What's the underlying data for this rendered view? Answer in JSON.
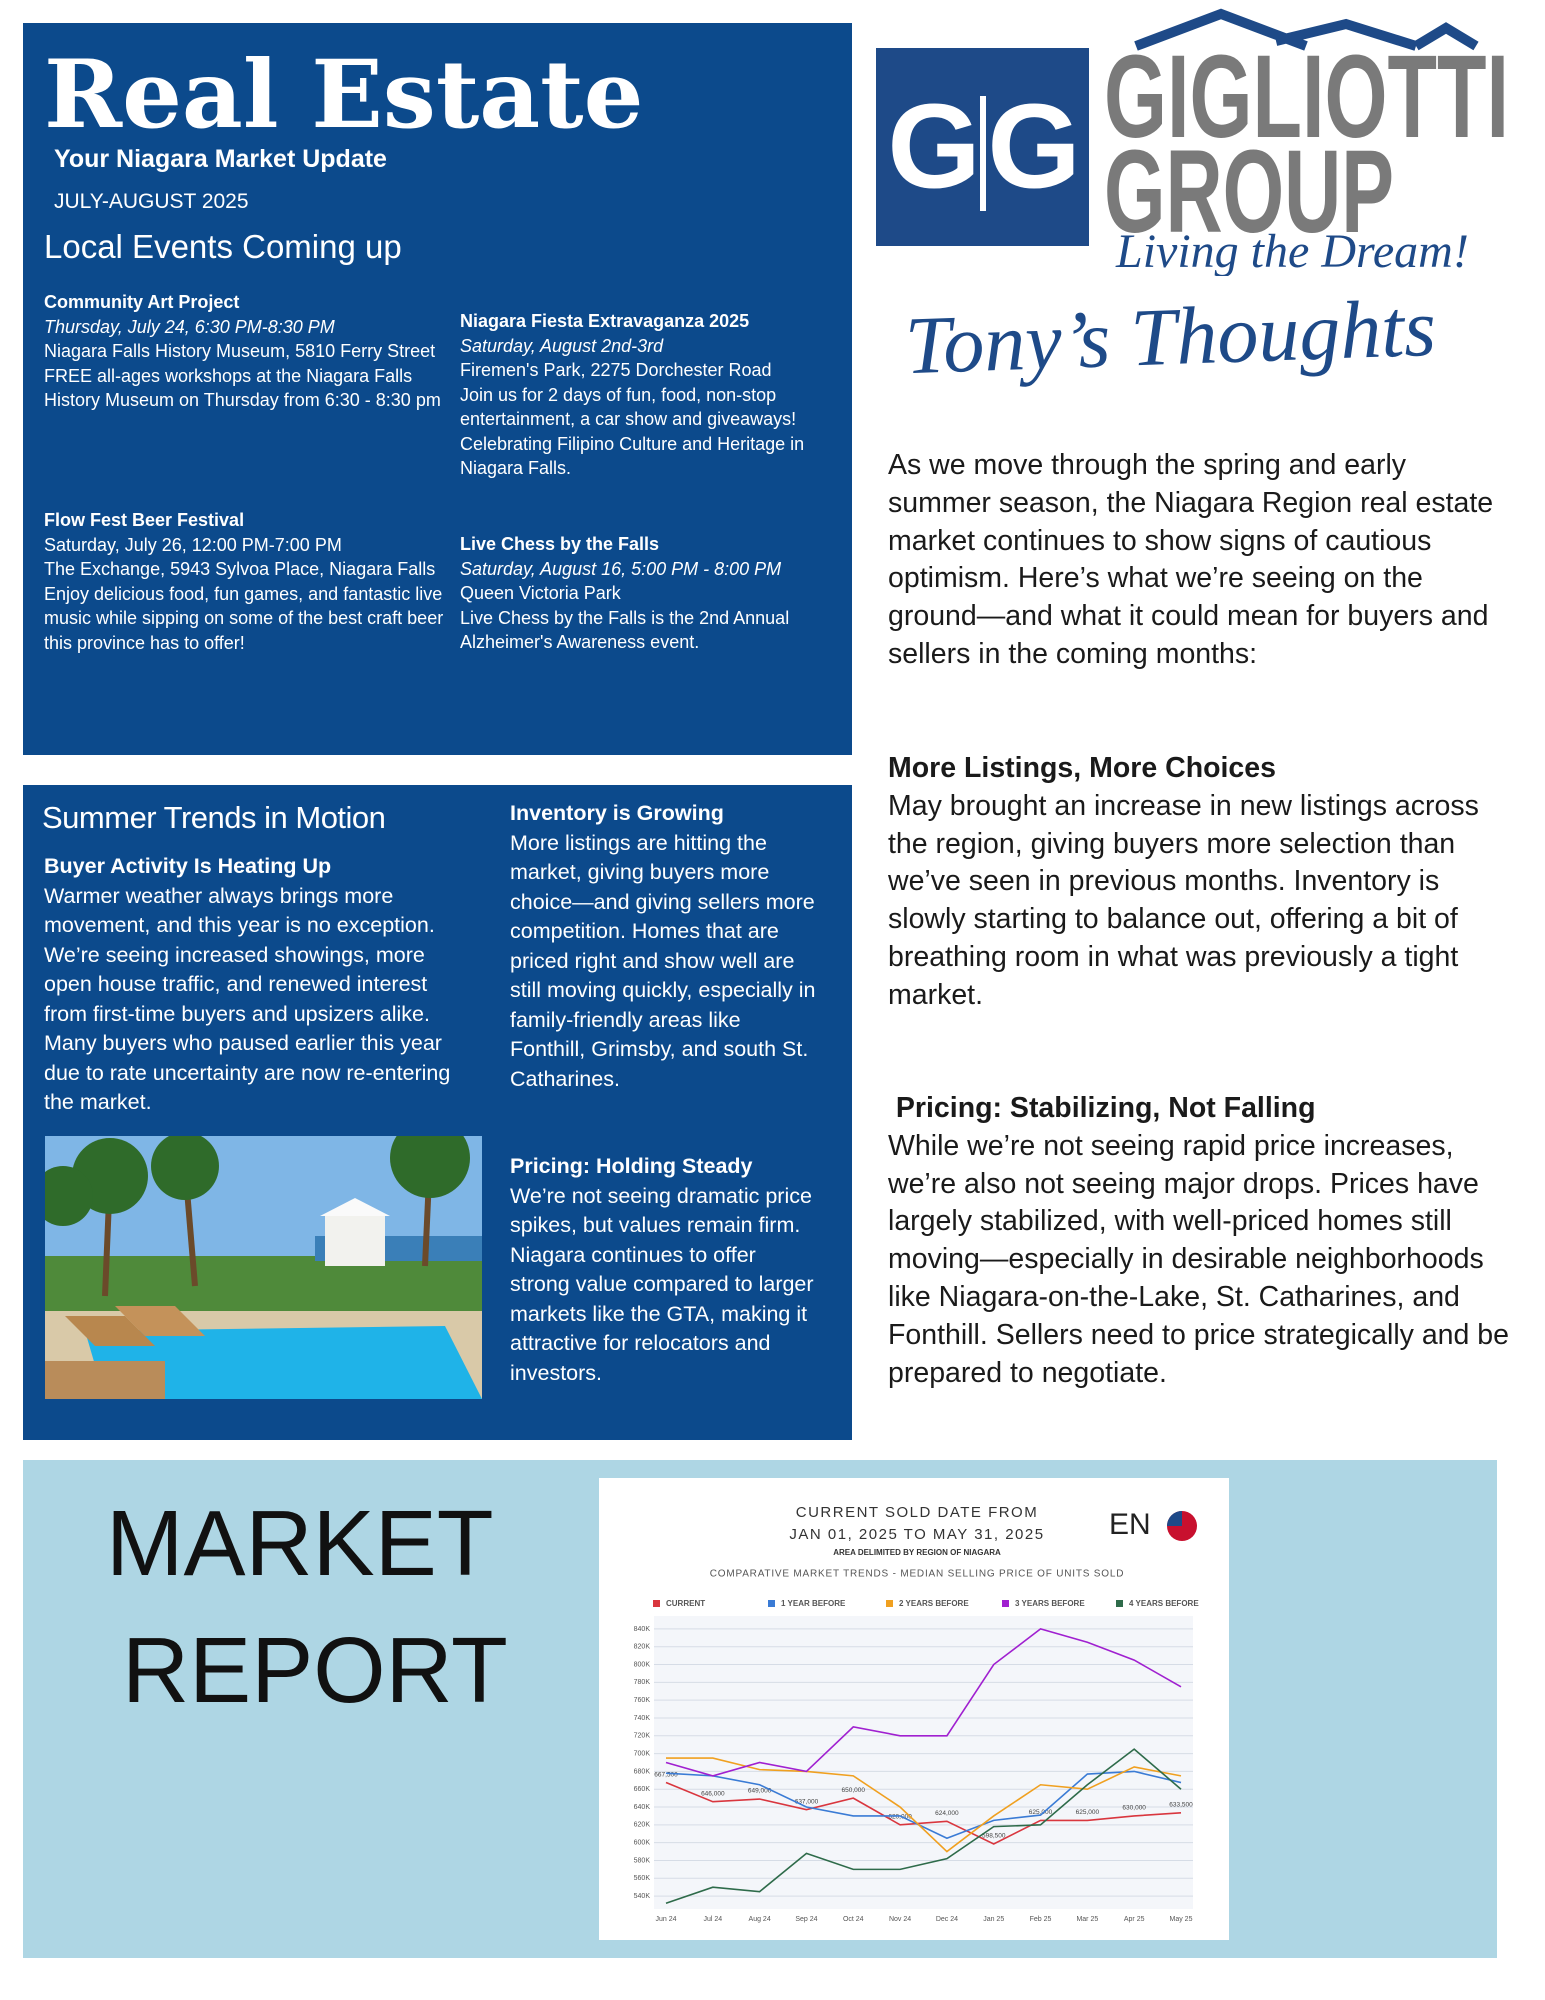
{
  "header": {
    "title": "Real Estate",
    "subtitle": "Your Niagara Market Update",
    "date": "JULY-AUGUST 2025",
    "events_heading": "Local Events Coming up"
  },
  "events": [
    {
      "name": "Community Art Project",
      "when": "Thursday, July 24,  6:30 PM-8:30 PM",
      "where": "Niagara Falls History Museum, 5810 Ferry Street",
      "description": " FREE all-ages workshops at the Niagara Falls History Museum on Thursday from 6:30 - 8:30 pm"
    },
    {
      "name": "Flow Fest Beer Festival",
      "when": "Saturday, July 26,  12:00 PM-7:00 PM",
      "where": "The Exchange, 5943 Sylvoa Place, Niagara Falls",
      "description": "Enjoy delicious food, fun games, and fantastic live music while sipping on some of the best craft beer this province has to offer!"
    },
    {
      "name": "Niagara Fiesta Extravaganza 2025",
      "when": "Saturday, August 2nd-3rd",
      "where": "Firemen's Park, 2275 Dorchester Road",
      "description": "Join us for 2 days of fun, food, non-stop entertainment, a car show and giveaways! Celebrating Filipino Culture and Heritage in Niagara Falls."
    },
    {
      "name": "Live Chess by the Falls",
      "when": "Saturday, August 16, 5:00 PM - 8:00 PM",
      "where": "Queen Victoria Park",
      "description": "Live Chess by the Falls is the 2nd Annual Alzheimer's Awareness event."
    }
  ],
  "trends": {
    "heading": "Summer Trends in Motion",
    "sections": [
      {
        "title": "Buyer Activity Is Heating Up",
        "body": "Warmer weather always brings more movement, and this year is no exception. We’re seeing increased showings, more open house traffic, and renewed interest from first-time buyers and upsizers alike. Many buyers who paused earlier this year due to rate uncertainty are now re-entering the market."
      },
      {
        "title": "Inventory is Growing",
        "body": "More listings are hitting the market, giving buyers more choice—and giving sellers more competition. Homes that are priced right and show well are still moving quickly, especially in family-friendly areas like Fonthill, Grimsby, and south St. Catharines."
      },
      {
        "title": "Pricing: Holding Steady",
        "body": "We’re not seeing dramatic price spikes, but values remain firm. Niagara continues to offer strong value compared to larger markets like the GTA, making it attractive for relocators and investors."
      }
    ]
  },
  "logo": {
    "initial_left": "G",
    "initial_right": "G",
    "name_line1": "GIGLIOTTI",
    "name_line2": "GROUP",
    "tagline": "Living the Dream!"
  },
  "thoughts": {
    "heading": "Tony’s Thoughts",
    "intro": "As we move through the spring and early summer season, the Niagara Region real estate market continues to show signs of cautious optimism. Here’s what we’re seeing on the ground—and what it could mean for buyers and sellers in the coming months:",
    "sections": [
      {
        "title": "More Listings, More Choices",
        "body": "May brought an increase in new listings across the region, giving buyers more selection than we’ve seen in previous months. Inventory is slowly starting to balance out, offering a bit of breathing room in what was previously a tight market."
      },
      {
        "title": " Pricing: Stabilizing, Not Falling",
        "body": "While we’re not seeing rapid price increases, we’re also not seeing major drops. Prices have largely stabilized, with well-priced homes still moving—especially in desirable neighborhoods like Niagara-on-the-Lake, St. Catharines, and Fonthill. Sellers need to price strategically and be prepared to negotiate."
      }
    ]
  },
  "market": {
    "heading_line1": "MARKET",
    "heading_line2": "REPORT"
  },
  "chart_data": {
    "type": "line",
    "title": "CURRENT SOLD DATE FROM",
    "subtitle": "JAN 01, 2025 TO MAY 31, 2025",
    "note": "AREA DELIMITED BY REGION OF NIAGARA",
    "chart_heading": "COMPARATIVE MARKET TRENDS - MEDIAN SELLING PRICE OF UNITS SOLD",
    "logo": "EN",
    "categories": [
      "Jun 24",
      "Jul 24",
      "Aug 24",
      "Sep 24",
      "Oct 24",
      "Nov 24",
      "Dec 24",
      "Jan 25",
      "Feb 25",
      "Mar 25",
      "Apr 25",
      "May 25"
    ],
    "series": [
      {
        "name": "CURRENT",
        "color": "#d9363e",
        "values": [
          667500,
          646000,
          649000,
          637000,
          650000,
          620000,
          624000,
          598500,
          625000,
          625000,
          630000,
          633500
        ],
        "value_labels": [
          "667,500",
          "646,000",
          "649,000",
          "637,000",
          "650,000",
          "620,000",
          "624,000",
          "598,500",
          "625,000",
          "625,000",
          "630,000",
          "633,500"
        ]
      },
      {
        "name": "1 YEAR BEFORE",
        "color": "#3a7bd5",
        "values": [
          678000,
          675000,
          665000,
          640000,
          630000,
          630000,
          605000,
          625000,
          631000,
          677000,
          680000,
          667450
        ]
      },
      {
        "name": "2 YEARS BEFORE",
        "color": "#f0a020",
        "values": [
          695000,
          695000,
          682000,
          680000,
          675000,
          640000,
          590000,
          630000,
          665000,
          660000,
          685000,
          675000
        ]
      },
      {
        "name": "3 YEARS BEFORE",
        "color": "#a020d0",
        "values": [
          690000,
          675000,
          690000,
          680000,
          730000,
          720000,
          720000,
          800000,
          840000,
          825000,
          805000,
          775000
        ]
      },
      {
        "name": "4 YEARS BEFORE",
        "color": "#2e6b4a",
        "values": [
          532000,
          550000,
          545000,
          588000,
          570000,
          570000,
          582000,
          618000,
          620000,
          665000,
          705000,
          660000
        ]
      }
    ],
    "ylim": [
      530000,
      850000
    ],
    "yticks": [
      {
        "value": 540000,
        "label": "540K"
      },
      {
        "value": 560000,
        "label": "560K"
      },
      {
        "value": 580000,
        "label": "580K"
      },
      {
        "value": 600000,
        "label": "600K"
      },
      {
        "value": 620000,
        "label": "620K"
      },
      {
        "value": 640000,
        "label": "640K"
      },
      {
        "value": 660000,
        "label": "660K"
      },
      {
        "value": 680000,
        "label": "680K"
      },
      {
        "value": 700000,
        "label": "700K"
      },
      {
        "value": 720000,
        "label": "720K"
      },
      {
        "value": 740000,
        "label": "740K"
      },
      {
        "value": 760000,
        "label": "760K"
      },
      {
        "value": 780000,
        "label": "780K"
      },
      {
        "value": 800000,
        "label": "800K"
      },
      {
        "value": 820000,
        "label": "820K"
      },
      {
        "value": 840000,
        "label": "840K"
      }
    ],
    "grid": true
  }
}
